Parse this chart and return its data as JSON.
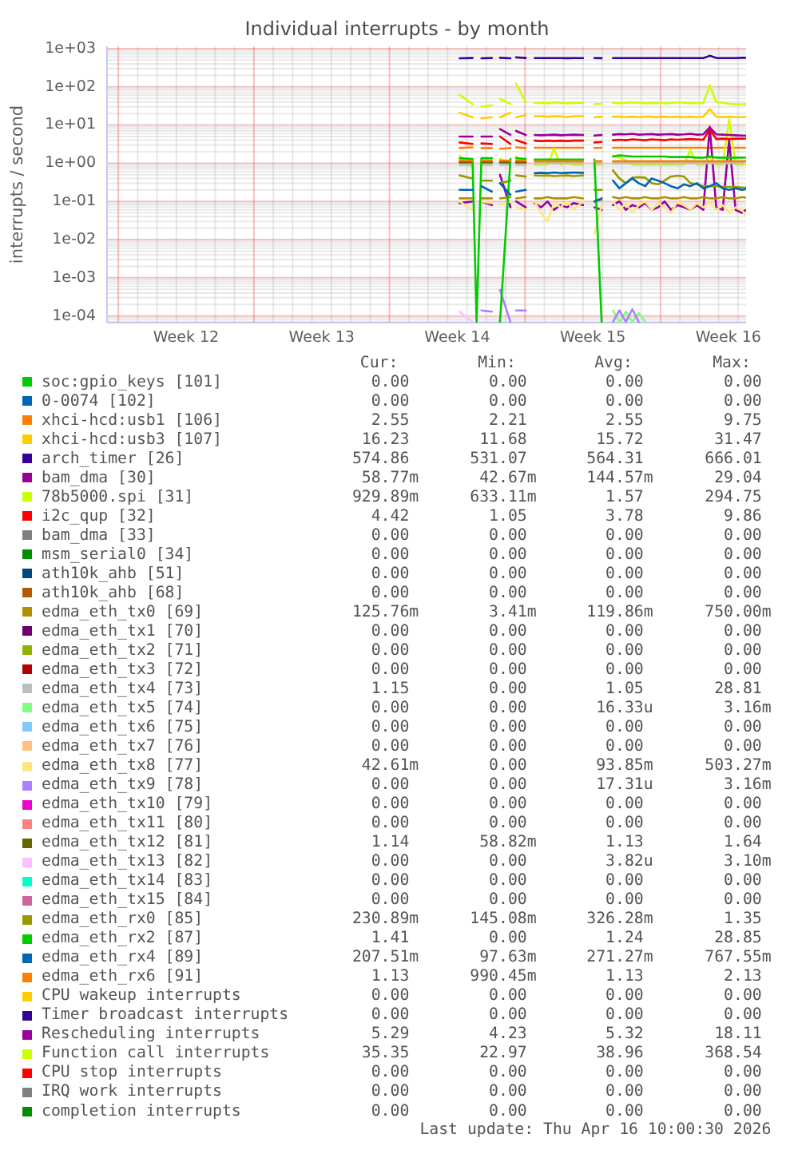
{
  "chart_data": {
    "type": "line",
    "title": "Individual interrupts - by month",
    "ylabel": "interrupts / second",
    "log": true,
    "grid": true,
    "legend": "bottom",
    "xlim": [
      "2026-03-14T10:00",
      "2026-04-16T10:00"
    ],
    "xticks": [
      {
        "value": "2026-03-15",
        "label": null
      },
      {
        "value": "2026-03-16",
        "label": null
      },
      {
        "value": "2026-03-17",
        "label": null
      },
      {
        "value": "2026-03-18",
        "label": null
      },
      {
        "value": "2026-03-18T12:00",
        "label": "Week 12"
      },
      {
        "value": "2026-03-19",
        "label": null
      },
      {
        "value": "2026-03-20",
        "label": null
      },
      {
        "value": "2026-03-21",
        "label": null
      },
      {
        "value": "2026-03-22",
        "label": null
      },
      {
        "value": "2026-03-23",
        "label": null
      },
      {
        "value": "2026-03-24",
        "label": null
      },
      {
        "value": "2026-03-25",
        "label": null
      },
      {
        "value": "2026-03-25T12:00",
        "label": "Week 13"
      },
      {
        "value": "2026-03-26",
        "label": null
      },
      {
        "value": "2026-03-27",
        "label": null
      },
      {
        "value": "2026-03-28",
        "label": null
      },
      {
        "value": "2026-03-29",
        "label": null
      },
      {
        "value": "2026-03-30",
        "label": null
      },
      {
        "value": "2026-03-31",
        "label": null
      },
      {
        "value": "2026-04-01",
        "label": null
      },
      {
        "value": "2026-04-01T12:00",
        "label": "Week 14"
      },
      {
        "value": "2026-04-02",
        "label": null
      },
      {
        "value": "2026-04-03",
        "label": null
      },
      {
        "value": "2026-04-04",
        "label": null
      },
      {
        "value": "2026-04-05",
        "label": null
      },
      {
        "value": "2026-04-06",
        "label": null
      },
      {
        "value": "2026-04-07",
        "label": null
      },
      {
        "value": "2026-04-08",
        "label": null
      },
      {
        "value": "2026-04-08T12:00",
        "label": "Week 15"
      },
      {
        "value": "2026-04-09",
        "label": null
      },
      {
        "value": "2026-04-10",
        "label": null
      },
      {
        "value": "2026-04-11",
        "label": null
      },
      {
        "value": "2026-04-12",
        "label": null
      },
      {
        "value": "2026-04-13",
        "label": null
      },
      {
        "value": "2026-04-14",
        "label": null
      },
      {
        "value": "2026-04-15",
        "label": null
      },
      {
        "value": "2026-04-15T12:00",
        "label": "Week 16"
      },
      {
        "value": "2026-04-16",
        "label": null
      }
    ],
    "ylim": [
      6.7e-05,
      1150
    ],
    "yticks": [
      {
        "value": 0.0001,
        "label": "1e-04"
      },
      {
        "value": 0.001,
        "label": "1e-03"
      },
      {
        "value": 0.01,
        "label": "1e-02"
      },
      {
        "value": 0.1,
        "label": "1e-01"
      },
      {
        "value": 1,
        "label": "1e+00"
      },
      {
        "value": 10,
        "label": "1e+01"
      },
      {
        "value": 100,
        "label": "1e+02"
      },
      {
        "value": 1000,
        "label": "1e+03"
      }
    ],
    "x": [
      "2026-04-01T15:00",
      "2026-04-02T07:00",
      "2026-04-02T12:00",
      "2026-04-02T18:00",
      "2026-04-03T07:00",
      "2026-04-03T12:00",
      "2026-04-03T17:00",
      "2026-04-04T06:00",
      "2026-04-04T10:00",
      "2026-04-04T13:00",
      "2026-04-05T01:00",
      "2026-04-05T07:00",
      "2026-04-05T12:00",
      "2026-04-05T20:00",
      "2026-04-06T04:00",
      "2026-04-06T12:00",
      "2026-04-06T20:00",
      "2026-04-07T04:00",
      "2026-04-07T12:00",
      "2026-04-08T00:00",
      "2026-04-08T07:00",
      "2026-04-08T14:00",
      "2026-04-08T23:00",
      "2026-04-09T06:00",
      "2026-04-09T13:00",
      "2026-04-09T21:00",
      "2026-04-10T05:00",
      "2026-04-10T13:00",
      "2026-04-10T21:00",
      "2026-04-11T05:00",
      "2026-04-11T13:00",
      "2026-04-11T21:00",
      "2026-04-12T05:00",
      "2026-04-12T13:00",
      "2026-04-12T21:00",
      "2026-04-13T05:00",
      "2026-04-13T13:00",
      "2026-04-13T21:00",
      "2026-04-14T05:00",
      "2026-04-14T13:00",
      "2026-04-14T21:00",
      "2026-04-15T05:00",
      "2026-04-15T13:00",
      "2026-04-15T21:00",
      "2026-04-16T05:00",
      "2026-04-16T09:00"
    ],
    "series": [
      {
        "name": "soc:gpio_keys [101]",
        "color": "#00cc00",
        "values": [
          null,
          null,
          null,
          null,
          null,
          null,
          null,
          null,
          null,
          null,
          null,
          null,
          null,
          null,
          null,
          null,
          null,
          null,
          null,
          null,
          null,
          null,
          null,
          null,
          null,
          null,
          null,
          null,
          null,
          null,
          null,
          null,
          null,
          null,
          null,
          null,
          null,
          null,
          null,
          null,
          null,
          null,
          null,
          null,
          null,
          null
        ]
      },
      {
        "name": "0-0074 [102]",
        "color": "#0066b3",
        "values": [
          null,
          null,
          null,
          null,
          null,
          null,
          null,
          null,
          null,
          null,
          null,
          null,
          null,
          null,
          null,
          null,
          null,
          null,
          null,
          null,
          null,
          null,
          null,
          null,
          null,
          null,
          null,
          null,
          null,
          null,
          null,
          null,
          null,
          null,
          null,
          null,
          null,
          null,
          null,
          null,
          null,
          null,
          null,
          null,
          null,
          null
        ]
      },
      {
        "name": "xhci-hcd:usb1 [106]",
        "color": "#ff8000",
        "values": [
          2.5,
          2.6,
          null,
          2.5,
          2.5,
          null,
          2.4,
          2.5,
          null,
          2.6,
          2.5,
          null,
          2.55,
          2.55,
          2.55,
          2.55,
          2.55,
          2.55,
          2.55,
          2.55,
          null,
          2.5,
          2.55,
          null,
          2.55,
          2.55,
          2.55,
          2.55,
          2.55,
          2.55,
          2.55,
          2.55,
          2.55,
          2.55,
          2.55,
          2.55,
          2.55,
          2.55,
          2.55,
          2.55,
          2.55,
          2.55,
          2.55,
          2.55,
          2.55,
          2.55
        ]
      },
      {
        "name": "xhci-hcd:usb3 [107]",
        "color": "#ffcc00",
        "values": [
          21,
          16,
          null,
          15,
          16,
          null,
          16,
          21,
          null,
          16,
          18,
          null,
          17,
          17,
          16.5,
          17,
          17,
          16,
          17,
          17,
          null,
          16,
          16.5,
          null,
          16.5,
          16.5,
          16,
          16.5,
          16,
          16.5,
          16.5,
          16,
          16.5,
          16,
          16.5,
          16,
          16.5,
          16,
          16.5,
          26,
          16.5,
          16,
          16.5,
          16,
          16,
          16.23
        ]
      },
      {
        "name": "arch_timer [26]",
        "color": "#330099",
        "values": [
          560,
          570,
          null,
          560,
          570,
          null,
          575,
          560,
          null,
          590,
          570,
          null,
          565,
          566,
          564,
          565,
          566,
          563,
          565,
          566,
          null,
          565,
          563,
          null,
          566,
          565,
          564,
          566,
          565,
          564,
          565,
          566,
          565,
          564,
          565,
          566,
          564,
          565,
          566,
          650,
          570,
          566,
          565,
          564,
          575,
          574.86
        ]
      },
      {
        "name": "bam_dma [30]",
        "color": "#990099",
        "values": [
          0.09,
          0.1,
          null,
          0.1,
          0.08,
          null,
          0.5,
          0.07,
          null,
          0.1,
          0.07,
          null,
          0.09,
          0.07,
          0.1,
          0.06,
          0.08,
          0.07,
          0.09,
          0.08,
          null,
          0.07,
          0.06,
          null,
          0.08,
          0.1,
          0.06,
          0.08,
          0.07,
          0.09,
          0.06,
          0.07,
          0.1,
          0.06,
          0.08,
          0.07,
          0.06,
          0.08,
          0.06,
          9,
          0.07,
          0.06,
          4,
          0.06,
          0.05,
          0.05877
        ]
      },
      {
        "name": "78b5000.spi [31]",
        "color": "#ccff00",
        "values": [
          1.6,
          0.75,
          null,
          1,
          1,
          null,
          1.3,
          1,
          null,
          1.5,
          1,
          null,
          0.9,
          0.9,
          0.9,
          2.4,
          0.9,
          1,
          0.9,
          0.9,
          null,
          0.9,
          0.9,
          null,
          1.6,
          1.4,
          1.2,
          0.9,
          0.9,
          0.9,
          0.9,
          0.9,
          0.9,
          0.9,
          0.9,
          0.9,
          2.2,
          0.9,
          0.9,
          1.5,
          0.9,
          0.9,
          14,
          0.9,
          0.9,
          0.92989
        ]
      },
      {
        "name": "i2c_qup [32]",
        "color": "#ff0000",
        "values": [
          3.5,
          3.2,
          null,
          3.3,
          3.2,
          null,
          5,
          3.2,
          null,
          4,
          3.3,
          null,
          3.9,
          3.8,
          3.9,
          3.8,
          3.9,
          3.8,
          3.9,
          3.9,
          null,
          3.5,
          3.6,
          null,
          4,
          4.1,
          4,
          4.2,
          4.1,
          4,
          4.2,
          4.1,
          4,
          4.2,
          4.1,
          4.2,
          4.3,
          4.2,
          4.1,
          7.8,
          4.3,
          4.4,
          4.3,
          4.4,
          4.4,
          4.42
        ]
      },
      {
        "name": "bam_dma [33]",
        "color": "#808080",
        "values": [
          null,
          null,
          null,
          null,
          null,
          null,
          null,
          null,
          null,
          null,
          null,
          null,
          null,
          null,
          null,
          null,
          null,
          null,
          null,
          null,
          null,
          null,
          null,
          null,
          null,
          null,
          null,
          null,
          null,
          null,
          null,
          null,
          null,
          null,
          null,
          null,
          null,
          null,
          null,
          null,
          null,
          null,
          null,
          null,
          null,
          null
        ]
      },
      {
        "name": "msm_serial0 [34]",
        "color": "#008f00",
        "values": [
          null,
          null,
          null,
          null,
          null,
          null,
          null,
          null,
          null,
          null,
          null,
          null,
          null,
          null,
          null,
          null,
          null,
          null,
          null,
          null,
          null,
          null,
          null,
          null,
          null,
          null,
          null,
          null,
          null,
          null,
          null,
          null,
          null,
          null,
          null,
          null,
          null,
          null,
          null,
          null,
          null,
          null,
          null,
          null,
          null,
          null
        ]
      },
      {
        "name": "ath10k_ahb [51]",
        "color": "#00487d",
        "values": [
          null,
          null,
          null,
          null,
          null,
          null,
          null,
          null,
          null,
          null,
          null,
          null,
          null,
          null,
          null,
          null,
          null,
          null,
          null,
          null,
          null,
          null,
          null,
          null,
          null,
          null,
          null,
          null,
          null,
          null,
          null,
          null,
          null,
          null,
          null,
          null,
          null,
          null,
          null,
          null,
          null,
          null,
          null,
          null,
          null,
          null
        ]
      },
      {
        "name": "ath10k_ahb [68]",
        "color": "#b35a00",
        "values": [
          null,
          null,
          null,
          null,
          null,
          null,
          null,
          null,
          null,
          null,
          null,
          null,
          null,
          null,
          null,
          null,
          null,
          null,
          null,
          null,
          null,
          null,
          null,
          null,
          null,
          null,
          null,
          null,
          null,
          null,
          null,
          null,
          null,
          null,
          null,
          null,
          null,
          null,
          null,
          null,
          null,
          null,
          null,
          null,
          null,
          null
        ]
      },
      {
        "name": "edma_eth_tx0 [69]",
        "color": "#b38f00",
        "values": [
          0.12,
          0.12,
          null,
          0.12,
          0.12,
          null,
          0.12,
          0.13,
          null,
          0.12,
          0.13,
          null,
          0.12,
          0.12,
          0.13,
          0.12,
          0.12,
          0.12,
          0.13,
          0.12,
          null,
          0.1,
          0.11,
          null,
          0.13,
          0.12,
          0.13,
          0.12,
          0.12,
          0.13,
          0.12,
          0.12,
          0.13,
          0.12,
          0.12,
          0.13,
          0.12,
          0.12,
          0.13,
          0.12,
          0.12,
          0.13,
          0.12,
          0.12,
          0.13,
          0.12576
        ]
      },
      {
        "name": "edma_eth_tx1 [70]",
        "color": "#6b006b",
        "values": [
          null,
          null,
          null,
          null,
          null,
          null,
          null,
          null,
          null,
          null,
          null,
          null,
          null,
          null,
          null,
          null,
          null,
          null,
          null,
          null,
          null,
          null,
          null,
          null,
          null,
          null,
          null,
          null,
          null,
          null,
          null,
          null,
          null,
          null,
          null,
          null,
          null,
          null,
          null,
          null,
          null,
          null,
          null,
          null,
          null,
          null
        ]
      },
      {
        "name": "edma_eth_tx2 [71]",
        "color": "#8fb300",
        "values": [
          null,
          null,
          null,
          null,
          null,
          null,
          null,
          null,
          null,
          null,
          null,
          null,
          null,
          null,
          null,
          null,
          null,
          null,
          null,
          null,
          null,
          null,
          null,
          null,
          null,
          null,
          null,
          null,
          null,
          null,
          null,
          null,
          null,
          null,
          null,
          null,
          null,
          null,
          null,
          null,
          null,
          null,
          null,
          null,
          null,
          null
        ]
      },
      {
        "name": "edma_eth_tx3 [72]",
        "color": "#b30000",
        "values": [
          null,
          null,
          null,
          null,
          null,
          null,
          null,
          null,
          null,
          null,
          null,
          null,
          null,
          null,
          null,
          null,
          null,
          null,
          null,
          null,
          null,
          null,
          null,
          null,
          null,
          null,
          null,
          null,
          null,
          null,
          null,
          null,
          null,
          null,
          null,
          null,
          null,
          null,
          null,
          null,
          null,
          null,
          null,
          null,
          null,
          null
        ]
      },
      {
        "name": "edma_eth_tx4 [73]",
        "color": "#bebebe",
        "values": [
          0.9,
          0.9,
          null,
          0.9,
          0.9,
          null,
          0.9,
          0.9,
          null,
          0.9,
          0.9,
          null,
          1,
          1,
          1,
          1,
          1,
          1,
          1,
          1,
          null,
          1,
          1,
          null,
          1,
          1,
          1,
          1,
          1,
          1,
          1,
          1,
          1,
          1,
          1,
          1,
          1,
          1,
          1,
          1,
          1,
          1,
          1,
          1,
          1,
          1.15
        ]
      },
      {
        "name": "edma_eth_tx5 [74]",
        "color": "#80ff80",
        "values": [
          null,
          null,
          null,
          null,
          null,
          null,
          null,
          null,
          null,
          null,
          null,
          null,
          null,
          null,
          null,
          null,
          null,
          null,
          null,
          null,
          null,
          null,
          null,
          null,
          0.00014,
          7e-05,
          0.00013,
          7e-05,
          0.00012,
          7e-05,
          null,
          null,
          null,
          null,
          null,
          null,
          null,
          null,
          null,
          null,
          null,
          null,
          null,
          null,
          null,
          null
        ]
      },
      {
        "name": "edma_eth_tx6 [75]",
        "color": "#80c9ff",
        "values": [
          null,
          null,
          null,
          null,
          null,
          null,
          null,
          null,
          null,
          null,
          null,
          null,
          null,
          null,
          null,
          null,
          null,
          null,
          null,
          null,
          null,
          null,
          null,
          null,
          null,
          null,
          null,
          null,
          null,
          null,
          null,
          null,
          null,
          null,
          null,
          null,
          null,
          null,
          null,
          null,
          null,
          null,
          null,
          null,
          null,
          null
        ]
      },
      {
        "name": "edma_eth_tx7 [76]",
        "color": "#ffc080",
        "values": [
          null,
          null,
          null,
          null,
          null,
          null,
          null,
          null,
          null,
          null,
          null,
          null,
          null,
          null,
          null,
          null,
          null,
          null,
          null,
          null,
          null,
          null,
          null,
          null,
          null,
          null,
          null,
          null,
          null,
          null,
          null,
          null,
          null,
          null,
          null,
          null,
          null,
          null,
          null,
          null,
          null,
          null,
          null,
          null,
          null,
          null
        ]
      },
      {
        "name": "edma_eth_tx8 [77]",
        "color": "#ffe680",
        "values": [
          0.1,
          0.06,
          null,
          0.1,
          0.09,
          null,
          0.08,
          0.1,
          null,
          0.07,
          0.06,
          null,
          0.1,
          0.05,
          0.03,
          0.09,
          0.07,
          0.1,
          0.06,
          0.1,
          null,
          0.014,
          0.08,
          null,
          0.1,
          0.06,
          0.09,
          0.05,
          0.08,
          0.1,
          0.06,
          0.09,
          0.07,
          0.05,
          0.1,
          0.08,
          0.06,
          0.09,
          0.07,
          0.1,
          0.06,
          0.08,
          0.05,
          0.07,
          0.06,
          0.04261
        ]
      },
      {
        "name": "edma_eth_tx9 [78]",
        "color": "#aa80ff",
        "values": [
          null,
          null,
          null,
          0.00014,
          0.00013,
          null,
          0.00048,
          7e-05,
          null,
          0.00014,
          0.00014,
          null,
          null,
          null,
          null,
          null,
          null,
          null,
          null,
          null,
          null,
          null,
          null,
          null,
          7e-05,
          0.00014,
          7e-05,
          0.00015,
          7e-05,
          null,
          null,
          null,
          null,
          null,
          null,
          null,
          null,
          null,
          null,
          null,
          null,
          null,
          null,
          null,
          null,
          null
        ]
      },
      {
        "name": "edma_eth_tx10 [79]",
        "color": "#ee00cc",
        "values": [
          null,
          null,
          null,
          null,
          null,
          null,
          null,
          null,
          null,
          null,
          null,
          null,
          null,
          null,
          null,
          null,
          null,
          null,
          null,
          null,
          null,
          null,
          null,
          null,
          null,
          null,
          null,
          null,
          null,
          null,
          null,
          null,
          null,
          null,
          null,
          null,
          null,
          null,
          null,
          null,
          null,
          null,
          null,
          null,
          null,
          null
        ]
      },
      {
        "name": "edma_eth_tx11 [80]",
        "color": "#ff8080",
        "values": [
          null,
          null,
          null,
          null,
          null,
          null,
          null,
          null,
          null,
          null,
          null,
          null,
          null,
          null,
          null,
          null,
          null,
          null,
          null,
          null,
          null,
          null,
          null,
          null,
          null,
          null,
          null,
          null,
          null,
          null,
          null,
          null,
          null,
          null,
          null,
          null,
          null,
          null,
          null,
          null,
          null,
          null,
          null,
          null,
          null,
          null
        ]
      },
      {
        "name": "edma_eth_tx12 [81]",
        "color": "#666600",
        "values": [
          1.05,
          1.05,
          null,
          1.05,
          1.05,
          null,
          1.05,
          1.05,
          null,
          1.05,
          1.05,
          null,
          null,
          null,
          null,
          null,
          null,
          null,
          null,
          null,
          null,
          null,
          null,
          null,
          null,
          null,
          null,
          null,
          null,
          null,
          null,
          null,
          null,
          null,
          null,
          null,
          null,
          null,
          null,
          null,
          null,
          null,
          null,
          null,
          null,
          null
        ]
      },
      {
        "name": "edma_eth_tx13 [82]",
        "color": "#ffbfff",
        "values": [
          0.00013,
          7e-05,
          null,
          null,
          null,
          null,
          null,
          null,
          null,
          null,
          null,
          null,
          null,
          null,
          null,
          null,
          null,
          null,
          null,
          null,
          null,
          null,
          null,
          null,
          null,
          null,
          null,
          null,
          null,
          null,
          null,
          null,
          null,
          null,
          null,
          null,
          null,
          null,
          null,
          null,
          null,
          null,
          null,
          null,
          null,
          null
        ]
      },
      {
        "name": "edma_eth_tx14 [83]",
        "color": "#00ffcc",
        "values": [
          null,
          null,
          null,
          null,
          null,
          null,
          null,
          null,
          null,
          null,
          null,
          null,
          null,
          null,
          null,
          null,
          null,
          null,
          null,
          null,
          null,
          null,
          null,
          null,
          null,
          null,
          null,
          null,
          null,
          null,
          null,
          null,
          null,
          null,
          null,
          null,
          null,
          null,
          null,
          null,
          null,
          null,
          null,
          null,
          null,
          null
        ]
      },
      {
        "name": "edma_eth_tx15 [84]",
        "color": "#cc6699",
        "values": [
          null,
          null,
          null,
          null,
          null,
          null,
          null,
          null,
          null,
          null,
          null,
          null,
          null,
          null,
          null,
          null,
          null,
          null,
          null,
          null,
          null,
          null,
          null,
          null,
          null,
          null,
          null,
          null,
          null,
          null,
          null,
          null,
          null,
          null,
          null,
          null,
          null,
          null,
          null,
          null,
          null,
          null,
          null,
          null,
          null,
          null
        ]
      },
      {
        "name": "edma_eth_rx0 [85]",
        "color": "#999900",
        "values": [
          0.48,
          0.4,
          null,
          0.35,
          0.35,
          null,
          0.3,
          0.35,
          null,
          0.48,
          0.45,
          null,
          0.48,
          0.47,
          0.48,
          0.46,
          0.47,
          0.48,
          0.46,
          0.48,
          null,
          0.2,
          0.2,
          null,
          0.65,
          0.4,
          0.3,
          0.42,
          0.43,
          0.42,
          0.3,
          0.28,
          0.35,
          0.45,
          0.47,
          0.45,
          0.3,
          0.28,
          0.25,
          0.25,
          0.25,
          0.24,
          0.24,
          0.24,
          0.23,
          0.23089
        ]
      },
      {
        "name": "edma_eth_rx2 [87]",
        "color": "#00cc00",
        "values": [
          1.35,
          1.3,
          7e-05,
          1.35,
          1.35,
          null,
          7e-05,
          1.3,
          null,
          1.35,
          1.3,
          null,
          1.25,
          1.25,
          1.25,
          1.25,
          1.25,
          1.25,
          1.25,
          1.25,
          null,
          1.25,
          7e-05,
          null,
          1.5,
          1.6,
          1.55,
          1.5,
          1.5,
          1.5,
          1.5,
          1.5,
          1.5,
          1.45,
          1.45,
          1.45,
          1.45,
          1.4,
          1.4,
          1.5,
          1.4,
          1.4,
          1.4,
          1.4,
          1.4,
          1.41
        ]
      },
      {
        "name": "edma_eth_rx4 [89]",
        "color": "#0066b3",
        "values": [
          0.2,
          0.2,
          null,
          0.25,
          0.18,
          null,
          0.3,
          0.15,
          null,
          0.18,
          0.2,
          null,
          0.55,
          0.56,
          0.55,
          0.57,
          0.55,
          0.56,
          0.57,
          0.56,
          null,
          0.1,
          0.12,
          null,
          0.35,
          0.22,
          0.3,
          0.4,
          0.3,
          0.25,
          0.4,
          0.35,
          0.3,
          0.25,
          0.22,
          0.28,
          0.25,
          0.3,
          0.22,
          0.25,
          0.3,
          0.22,
          0.2,
          0.22,
          0.2,
          0.20751
        ]
      },
      {
        "name": "edma_eth_rx6 [91]",
        "color": "#ff8000",
        "values": [
          1.18,
          1.18,
          null,
          1.18,
          1.18,
          null,
          1.18,
          1.18,
          null,
          1.18,
          1.18,
          null,
          1.13,
          1.13,
          1.13,
          1.13,
          1.13,
          1.13,
          1.13,
          1.13,
          null,
          1.13,
          1.13,
          null,
          1.13,
          1.13,
          1.13,
          1.13,
          1.13,
          1.13,
          1.13,
          1.13,
          1.13,
          1.13,
          1.13,
          1.13,
          1.13,
          1.13,
          1.13,
          1.13,
          1.13,
          1.13,
          1.13,
          1.13,
          1.13,
          1.13
        ]
      },
      {
        "name": "CPU wakeup interrupts",
        "color": "#ffcc00",
        "values": [
          null,
          null,
          null,
          null,
          null,
          null,
          null,
          null,
          null,
          null,
          null,
          null,
          null,
          null,
          null,
          null,
          null,
          null,
          null,
          null,
          null,
          null,
          null,
          null,
          null,
          null,
          null,
          null,
          null,
          null,
          null,
          null,
          null,
          null,
          null,
          null,
          null,
          null,
          null,
          null,
          null,
          null,
          null,
          null,
          null,
          null
        ]
      },
      {
        "name": "Timer broadcast interrupts",
        "color": "#330099",
        "values": [
          null,
          null,
          null,
          null,
          null,
          null,
          null,
          null,
          null,
          null,
          null,
          null,
          null,
          null,
          null,
          null,
          null,
          null,
          null,
          null,
          null,
          null,
          null,
          null,
          null,
          null,
          null,
          null,
          null,
          null,
          null,
          null,
          null,
          null,
          null,
          null,
          null,
          null,
          null,
          null,
          null,
          null,
          null,
          null,
          null,
          null
        ]
      },
      {
        "name": "Rescheduling interrupts",
        "color": "#990099",
        "values": [
          5,
          5,
          null,
          5,
          5,
          null,
          7.8,
          5.5,
          null,
          7,
          5.5,
          null,
          5.5,
          5.4,
          5.5,
          5.6,
          5.4,
          5.5,
          5.6,
          5.5,
          null,
          5.3,
          5.5,
          null,
          5.6,
          5.8,
          5.7,
          5.9,
          5.6,
          5.7,
          5.8,
          5.6,
          5.7,
          5.8,
          5.6,
          5.7,
          5.9,
          5.6,
          5.7,
          8.6,
          5.7,
          5.6,
          5.5,
          5.4,
          5.3,
          5.29
        ]
      },
      {
        "name": "Function call interrupts",
        "color": "#ccff00",
        "values": [
          62,
          35,
          null,
          30,
          33,
          null,
          48,
          36,
          null,
          120,
          40,
          null,
          38,
          38,
          37,
          39,
          38,
          37,
          38,
          38,
          null,
          35,
          36,
          null,
          38,
          37,
          38,
          39,
          38,
          37,
          38,
          38,
          37,
          38,
          39,
          38,
          37,
          38,
          38,
          110,
          40,
          38,
          36,
          35,
          35,
          35.35
        ]
      },
      {
        "name": "CPU stop interrupts",
        "color": "#ff0000",
        "values": [
          null,
          null,
          null,
          null,
          null,
          null,
          null,
          null,
          null,
          null,
          null,
          null,
          null,
          null,
          null,
          null,
          null,
          null,
          null,
          null,
          null,
          null,
          null,
          null,
          null,
          null,
          null,
          null,
          null,
          null,
          null,
          null,
          null,
          null,
          null,
          null,
          null,
          null,
          null,
          null,
          null,
          null,
          null,
          null,
          null,
          null
        ]
      },
      {
        "name": "IRQ work interrupts",
        "color": "#808080",
        "values": [
          null,
          null,
          null,
          null,
          null,
          null,
          null,
          null,
          null,
          null,
          null,
          null,
          null,
          null,
          null,
          null,
          null,
          null,
          null,
          null,
          null,
          null,
          null,
          null,
          null,
          null,
          null,
          null,
          null,
          null,
          null,
          null,
          null,
          null,
          null,
          null,
          null,
          null,
          null,
          null,
          null,
          null,
          null,
          null,
          null,
          null
        ]
      },
      {
        "name": "completion interrupts",
        "color": "#008f00",
        "values": [
          null,
          null,
          null,
          null,
          null,
          null,
          null,
          null,
          null,
          null,
          null,
          null,
          null,
          null,
          null,
          null,
          null,
          null,
          null,
          null,
          null,
          null,
          null,
          null,
          null,
          null,
          null,
          null,
          null,
          null,
          null,
          null,
          null,
          null,
          null,
          null,
          null,
          null,
          null,
          null,
          null,
          null,
          null,
          null,
          null,
          null
        ]
      }
    ],
    "annotations": [
      "Cur:",
      "Min:",
      "Avg:",
      "Max:",
      "0.00",
      "0.00",
      "0.00",
      "0.00",
      "0.00",
      "0.00",
      "0.00",
      "0.00",
      "2.55",
      "2.21",
      "2.55",
      "9.75",
      "16.23",
      "11.68",
      "15.72",
      "31.47",
      "574.86",
      "531.07",
      "564.31",
      "666.01",
      "58.77m",
      "42.67m",
      "144.57m",
      "29.04",
      "929.89m",
      "633.11m",
      "1.57",
      "294.75",
      "4.42",
      "1.05",
      "3.78",
      "9.86",
      "0.00",
      "0.00",
      "0.00",
      "0.00",
      "0.00",
      "0.00",
      "0.00",
      "0.00",
      "0.00",
      "0.00",
      "0.00",
      "0.00",
      "0.00",
      "0.00",
      "0.00",
      "0.00",
      "125.76m",
      "3.41m",
      "119.86m",
      "750.00m",
      "0.00",
      "0.00",
      "0.00",
      "0.00",
      "0.00",
      "0.00",
      "0.00",
      "0.00",
      "0.00",
      "0.00",
      "0.00",
      "0.00",
      "1.15",
      "0.00",
      "1.05",
      "28.81",
      "0.00",
      "0.00",
      "16.33u",
      "3.16m",
      "0.00",
      "0.00",
      "0.00",
      "0.00",
      "0.00",
      "0.00",
      "0.00",
      "0.00",
      "42.61m",
      "0.00",
      "93.85m",
      "503.27m",
      "0.00",
      "0.00",
      "17.31u",
      "3.16m",
      "0.00",
      "0.00",
      "0.00",
      "0.00",
      "0.00",
      "0.00",
      "0.00",
      "0.00",
      "1.14",
      "58.82m",
      "1.13",
      "1.64",
      "0.00",
      "0.00",
      "3.82u",
      "3.10m",
      "0.00",
      "0.00",
      "0.00",
      "0.00",
      "0.00",
      "0.00",
      "0.00",
      "0.00",
      "230.89m",
      "145.08m",
      "326.28m",
      "1.35",
      "1.41",
      "0.00",
      "1.24",
      "28.85",
      "207.51m",
      "97.63m",
      "271.27m",
      "767.55m",
      "1.13",
      "990.45m",
      "1.13",
      "2.13",
      "0.00",
      "0.00",
      "0.00",
      "0.00",
      "0.00",
      "0.00",
      "0.00",
      "0.00",
      "5.29",
      "4.23",
      "5.32",
      "18.11",
      "35.35",
      "22.97",
      "38.96",
      "368.54",
      "0.00",
      "0.00",
      "0.00",
      "0.00",
      "0.00",
      "0.00",
      "0.00",
      "0.00",
      "0.00",
      "0.00",
      "0.00",
      "0.00",
      "Last update: Thu Apr 16 10:00:30 2026"
    ]
  }
}
